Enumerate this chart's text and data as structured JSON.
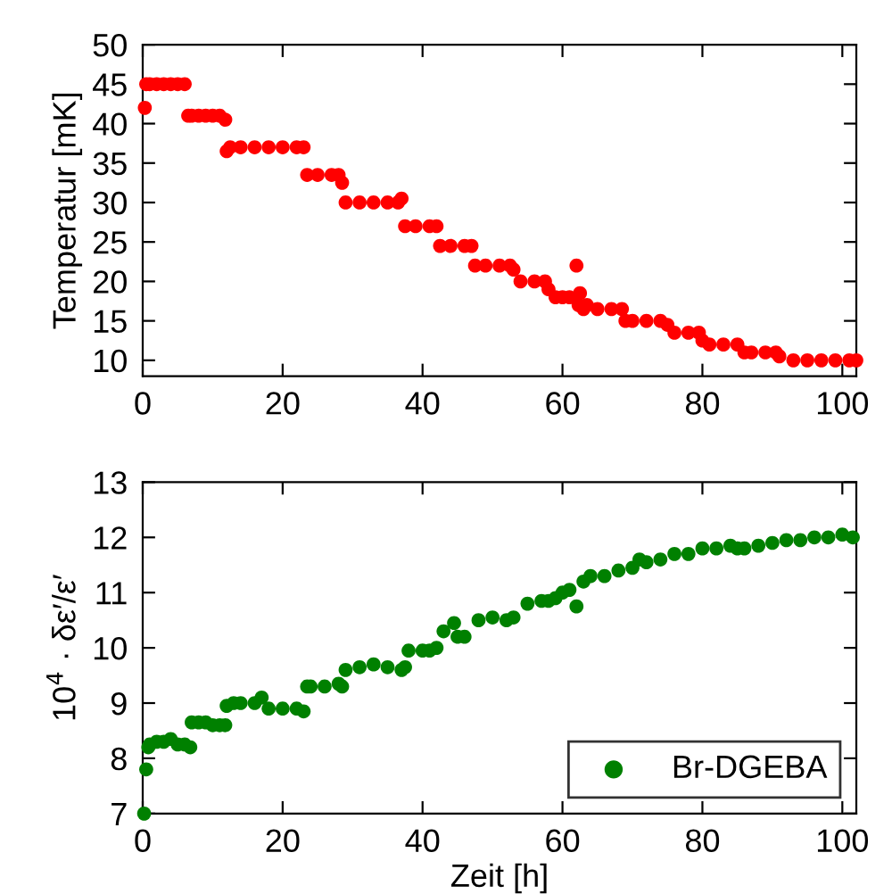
{
  "chart_data": [
    {
      "type": "scatter",
      "ylabel": "Temperatur [mK]",
      "xlim": [
        0,
        102
      ],
      "ylim": [
        8,
        50
      ],
      "xticks": [
        0,
        20,
        40,
        60,
        80,
        100
      ],
      "yticks": [
        10,
        15,
        20,
        25,
        30,
        35,
        40,
        45,
        50
      ],
      "marker": "circle",
      "grid": false,
      "legend": false,
      "series": [
        {
          "color": "#ff0000",
          "x": [
            0.3,
            0.5,
            1,
            2,
            3,
            4,
            5,
            6,
            6.5,
            7,
            8,
            9,
            10,
            11,
            11.8,
            12,
            12.5,
            14,
            16,
            18,
            20,
            22,
            23,
            23.5,
            25,
            27,
            28,
            28.5,
            29,
            31,
            33,
            35,
            36.5,
            37,
            37.5,
            39,
            41,
            42,
            42.5,
            44,
            46,
            47,
            47.5,
            49,
            51,
            52.5,
            53,
            54,
            56,
            57.5,
            58,
            59,
            60,
            61,
            62,
            62.3,
            62.5,
            63,
            63.5,
            65,
            67,
            68.5,
            69,
            70,
            72,
            74,
            75,
            76,
            78,
            79.5,
            80,
            81,
            83,
            85,
            86,
            87,
            89,
            90.5,
            91,
            93,
            95,
            97,
            99,
            101,
            102
          ],
          "values": [
            42,
            45,
            45,
            45,
            45,
            45,
            45,
            45,
            41,
            41,
            41,
            41,
            41,
            41,
            40.5,
            36.5,
            37,
            37,
            37,
            37,
            37,
            37,
            37,
            33.5,
            33.5,
            33.5,
            33.5,
            32.5,
            30,
            30,
            30,
            30,
            30,
            30.5,
            27,
            27,
            27,
            27,
            24.5,
            24.5,
            24.5,
            24.5,
            22,
            22,
            22,
            22,
            21.5,
            20,
            20,
            20,
            19,
            18,
            18,
            18,
            22,
            17,
            18.5,
            16.5,
            17,
            16.5,
            16.5,
            16.5,
            15,
            15,
            15,
            15,
            14.5,
            13.5,
            13.5,
            13.5,
            12.5,
            12,
            12,
            12,
            11,
            11,
            11,
            11,
            10.5,
            10,
            10,
            10,
            10,
            10,
            10
          ]
        }
      ]
    },
    {
      "type": "scatter",
      "xlabel": "Zeit [h]",
      "ylabel": "10$^{4}$ · δε′/ε′",
      "xlim": [
        0,
        102
      ],
      "ylim": [
        7,
        13
      ],
      "xticks": [
        0,
        20,
        40,
        60,
        80,
        100
      ],
      "yticks": [
        7,
        8,
        9,
        10,
        11,
        12,
        13
      ],
      "marker": "circle",
      "grid": false,
      "legend": "bottom right",
      "series": [
        {
          "name": "Br-DGEBA",
          "color": "#008000",
          "x": [
            0.2,
            0.5,
            0.8,
            1,
            2,
            3,
            4,
            5,
            6,
            6.8,
            7,
            8,
            9,
            10,
            11,
            11.8,
            12,
            13,
            14,
            16,
            17,
            18,
            20,
            22,
            23,
            23.5,
            24,
            26,
            28,
            28.5,
            29,
            31,
            33,
            35,
            37,
            37.5,
            38,
            40,
            41,
            42,
            43,
            44.5,
            45,
            46,
            48,
            50,
            52,
            53,
            55,
            57,
            58,
            59,
            60,
            61,
            62,
            63,
            64,
            66,
            68,
            70,
            71,
            72,
            74,
            76,
            78,
            80,
            82,
            84,
            85,
            86,
            88,
            90,
            92,
            94,
            96,
            98,
            100,
            101.5
          ],
          "values": [
            7.0,
            7.8,
            8.2,
            8.25,
            8.3,
            8.3,
            8.35,
            8.25,
            8.25,
            8.2,
            8.65,
            8.65,
            8.65,
            8.6,
            8.6,
            8.6,
            8.95,
            9.0,
            9.0,
            9.0,
            9.1,
            8.9,
            8.9,
            8.9,
            8.85,
            9.3,
            9.3,
            9.3,
            9.35,
            9.3,
            9.6,
            9.65,
            9.7,
            9.65,
            9.6,
            9.65,
            9.95,
            9.95,
            9.95,
            10.0,
            10.3,
            10.45,
            10.2,
            10.2,
            10.5,
            10.55,
            10.5,
            10.55,
            10.8,
            10.85,
            10.85,
            10.9,
            11.0,
            11.05,
            10.75,
            11.2,
            11.3,
            11.3,
            11.4,
            11.45,
            11.6,
            11.55,
            11.6,
            11.7,
            11.7,
            11.8,
            11.8,
            11.85,
            11.8,
            11.8,
            11.85,
            11.9,
            11.95,
            11.95,
            12.0,
            12.0,
            12.05,
            12.0
          ]
        }
      ]
    }
  ]
}
